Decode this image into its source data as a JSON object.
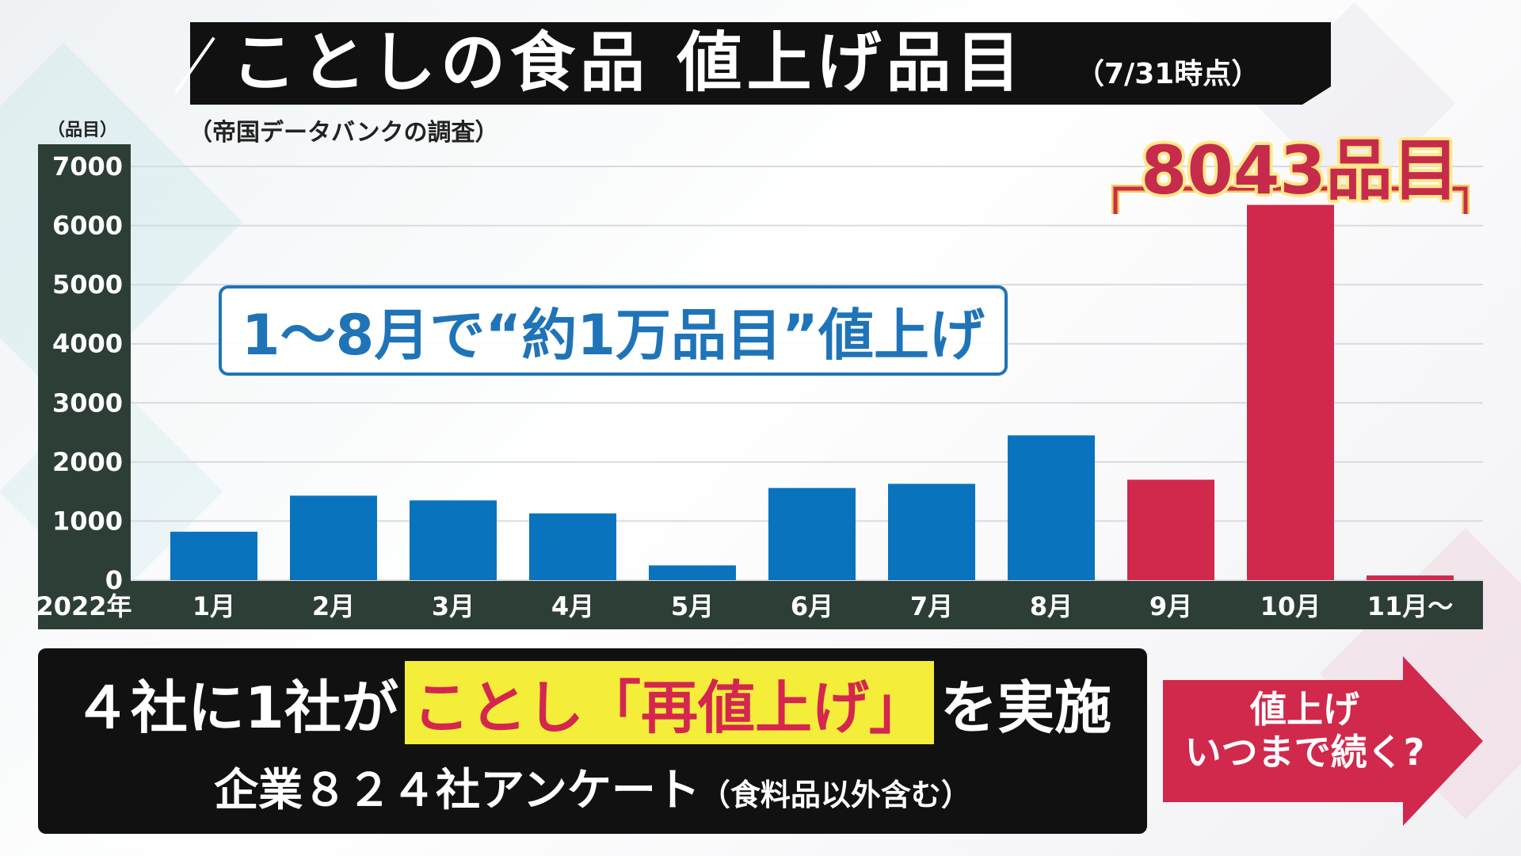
{
  "title": {
    "main": "ことしの食品 値上げ品目",
    "sub": "（7/31時点）"
  },
  "source": "（帝国データバンクの調査）",
  "callout": "1～8月で“約1万品目”値上げ",
  "total_label": "8043品目",
  "bottom": {
    "line1_pre": "４社に1社が",
    "line1_highlight": "ことし「再値上げ」",
    "line1_post": "を実施",
    "line2_main": "企業８２４社アンケート",
    "line2_note": "（食料品以外含む）"
  },
  "arrow_text": {
    "line1": "値上げ",
    "line2": "いつまで続く?"
  },
  "colors": {
    "blue": "#0a73be",
    "red": "#d0294c",
    "axis_panel": "#2c3e36",
    "title_bg": "#111111"
  },
  "chart_data": {
    "type": "bar",
    "ylabel": "（品目）",
    "xlabel": "2022年",
    "ylim": [
      0,
      7000
    ],
    "yticks": [
      0,
      1000,
      2000,
      3000,
      4000,
      5000,
      6000,
      7000
    ],
    "grid": true,
    "categories": [
      "1月",
      "2月",
      "3月",
      "4月",
      "5月",
      "6月",
      "7月",
      "8月",
      "9月",
      "10月",
      "11月～"
    ],
    "values": [
      820,
      1430,
      1350,
      1130,
      250,
      1560,
      1630,
      2450,
      1700,
      6350,
      80
    ],
    "bar_colors": [
      "blue",
      "blue",
      "blue",
      "blue",
      "blue",
      "blue",
      "blue",
      "blue",
      "red",
      "red",
      "red"
    ]
  }
}
